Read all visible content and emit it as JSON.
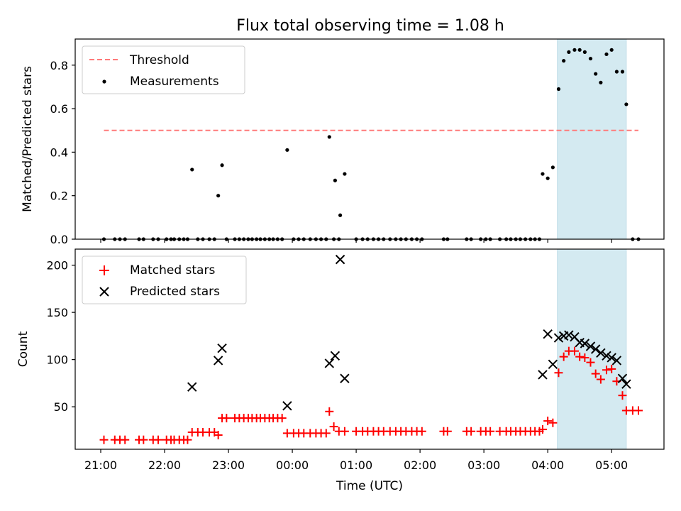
{
  "chart_data": [
    {
      "type": "scatter",
      "title": "Flux total observing time = 1.08 h",
      "xlabel": "",
      "ylabel": "Matched/Predicted stars",
      "xlim": [
        20.6,
        29.82
      ],
      "ylim": [
        0.0,
        0.92
      ],
      "yticks": [
        0.0,
        0.2,
        0.4,
        0.6,
        0.8
      ],
      "ytick_labels": [
        "0.0",
        "0.2",
        "0.4",
        "0.6",
        "0.8"
      ],
      "grid": false,
      "legend_position": "top-left",
      "shaded_span": [
        28.15,
        29.23
      ],
      "shade_color": "#d4eaf1",
      "threshold": {
        "name": "Threshold",
        "y": 0.5,
        "x_start": 21.05,
        "x_end": 29.42,
        "color": "#ff7a7a"
      },
      "series": [
        {
          "name": "Measurements",
          "marker": "dot",
          "color": "#000000",
          "x": [
            21.05,
            21.22,
            21.3,
            21.38,
            21.6,
            21.67,
            21.82,
            21.9,
            22.03,
            22.1,
            22.15,
            22.23,
            22.3,
            22.36,
            22.43,
            22.52,
            22.6,
            22.7,
            22.78,
            22.84,
            22.9,
            22.97,
            23.1,
            23.17,
            23.24,
            23.31,
            23.37,
            23.44,
            23.5,
            23.57,
            23.64,
            23.7,
            23.77,
            23.84,
            23.92,
            24.02,
            24.1,
            24.18,
            24.28,
            24.37,
            24.45,
            24.53,
            24.65,
            24.73,
            24.58,
            24.67,
            24.75,
            24.82,
            25.0,
            25.1,
            25.18,
            25.27,
            25.35,
            25.43,
            25.53,
            25.62,
            25.7,
            25.78,
            25.87,
            25.95,
            26.03,
            26.37,
            26.43,
            26.73,
            26.8,
            26.95,
            27.03,
            27.1,
            27.25,
            27.35,
            27.42,
            27.5,
            27.57,
            27.65,
            27.73,
            27.8,
            27.87,
            27.92,
            28.0,
            28.08,
            28.17,
            28.25,
            28.33,
            28.42,
            28.5,
            28.58,
            28.67,
            28.75,
            28.83,
            28.92,
            29.0,
            29.08,
            29.17,
            29.23,
            29.33,
            29.42
          ],
          "y": [
            0,
            0,
            0,
            0,
            0,
            0,
            0,
            0,
            0,
            0,
            0,
            0,
            0,
            0,
            0.32,
            0,
            0,
            0,
            0,
            0.2,
            0.34,
            0,
            0,
            0,
            0,
            0,
            0,
            0,
            0,
            0,
            0,
            0,
            0,
            0,
            0.41,
            0,
            0,
            0,
            0,
            0,
            0,
            0,
            0,
            0,
            0.47,
            0.27,
            0.11,
            0.3,
            0,
            0,
            0,
            0,
            0,
            0,
            0,
            0,
            0,
            0,
            0,
            0,
            0,
            0,
            0,
            0,
            0,
            0,
            0,
            0,
            0,
            0,
            0,
            0,
            0,
            0,
            0,
            0,
            0,
            0.3,
            0.28,
            0.33,
            0.69,
            0.82,
            0.86,
            0.87,
            0.87,
            0.86,
            0.83,
            0.76,
            0.72,
            0.85,
            0.87,
            0.77,
            0.77,
            0.62,
            0,
            0
          ]
        }
      ]
    },
    {
      "type": "scatter",
      "title": "",
      "xlabel": "Time (UTC)",
      "ylabel": "Count",
      "xlim": [
        20.6,
        29.82
      ],
      "ylim": [
        5,
        217
      ],
      "yticks": [
        50,
        100,
        150,
        200
      ],
      "ytick_labels": [
        "50",
        "100",
        "150",
        "200"
      ],
      "xticks": [
        21,
        22,
        23,
        24,
        25,
        26,
        27,
        28,
        29
      ],
      "xtick_labels": [
        "21:00",
        "22:00",
        "23:00",
        "00:00",
        "01:00",
        "02:00",
        "03:00",
        "04:00",
        "05:00"
      ],
      "grid": false,
      "legend_position": "top-left",
      "shaded_span": [
        28.15,
        29.23
      ],
      "shade_color": "#d4eaf1",
      "series": [
        {
          "name": "Matched stars",
          "marker": "plus",
          "color": "#ff0000",
          "x": [
            21.05,
            21.22,
            21.3,
            21.38,
            21.6,
            21.67,
            21.82,
            21.9,
            22.03,
            22.1,
            22.15,
            22.23,
            22.3,
            22.36,
            22.43,
            22.52,
            22.6,
            22.7,
            22.78,
            22.84,
            22.9,
            22.97,
            23.1,
            23.17,
            23.24,
            23.31,
            23.37,
            23.44,
            23.5,
            23.57,
            23.64,
            23.7,
            23.77,
            23.84,
            23.92,
            24.02,
            24.1,
            24.18,
            24.28,
            24.37,
            24.45,
            24.53,
            24.58,
            24.65,
            24.73,
            24.82,
            25.0,
            25.1,
            25.18,
            25.27,
            25.35,
            25.43,
            25.53,
            25.62,
            25.7,
            25.78,
            25.87,
            25.95,
            26.03,
            26.37,
            26.43,
            26.73,
            26.8,
            26.95,
            27.03,
            27.1,
            27.25,
            27.35,
            27.42,
            27.5,
            27.57,
            27.65,
            27.73,
            27.8,
            27.87,
            27.92,
            28.0,
            28.08,
            28.17,
            28.25,
            28.33,
            28.42,
            28.5,
            28.58,
            28.67,
            28.75,
            28.83,
            28.92,
            29.0,
            29.08,
            29.17,
            29.23,
            29.33,
            29.42
          ],
          "y": [
            15,
            15,
            15,
            15,
            15,
            15,
            15,
            15,
            15,
            15,
            15,
            15,
            15,
            15,
            23,
            23,
            23,
            23,
            23,
            20,
            38,
            38,
            38,
            38,
            38,
            38,
            38,
            38,
            38,
            38,
            38,
            38,
            38,
            38,
            22,
            22,
            22,
            22,
            22,
            22,
            22,
            22,
            45,
            29,
            24,
            24,
            24,
            24,
            24,
            24,
            24,
            24,
            24,
            24,
            24,
            24,
            24,
            24,
            24,
            24,
            24,
            24,
            24,
            24,
            24,
            24,
            24,
            24,
            24,
            24,
            24,
            24,
            24,
            24,
            24,
            26,
            35,
            33,
            86,
            103,
            109,
            109,
            103,
            102,
            97,
            85,
            79,
            89,
            90,
            77,
            62,
            46,
            46,
            46
          ]
        },
        {
          "name": "Predicted stars",
          "marker": "x",
          "color": "#000000",
          "x": [
            22.43,
            22.84,
            22.9,
            23.92,
            24.58,
            24.67,
            24.75,
            24.82,
            27.92,
            28.0,
            28.08,
            28.17,
            28.25,
            28.33,
            28.42,
            28.5,
            28.58,
            28.67,
            28.75,
            28.83,
            28.92,
            29.0,
            29.08,
            29.17,
            29.23
          ],
          "y": [
            71,
            99,
            112,
            51,
            96,
            104,
            206,
            80,
            84,
            127,
            95,
            123,
            125,
            126,
            124,
            118,
            117,
            114,
            111,
            107,
            104,
            102,
            99,
            80,
            74
          ]
        }
      ]
    }
  ]
}
